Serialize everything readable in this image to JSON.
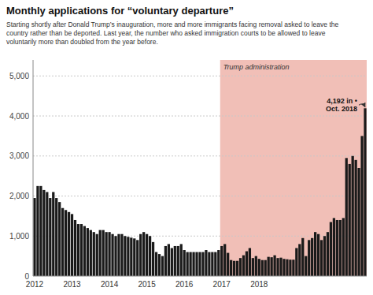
{
  "chart_data": {
    "type": "bar",
    "title": "Monthly applications for “voluntary departure”",
    "subtitle": "Starting shortly after Donald Trump’s inauguration, more and more immigrants facing removal asked to leave the\ncountry rather than be deported. Last year, the number who asked immigration courts to be allowed to leave\nvoluntarily more than doubled from the year before.",
    "categories": [
      "2012",
      null,
      null,
      null,
      null,
      null,
      null,
      null,
      null,
      null,
      null,
      null,
      "2013",
      null,
      null,
      null,
      null,
      null,
      null,
      null,
      null,
      null,
      null,
      null,
      "2014",
      null,
      null,
      null,
      null,
      null,
      null,
      null,
      null,
      null,
      null,
      null,
      "2015",
      null,
      null,
      null,
      null,
      null,
      null,
      null,
      null,
      null,
      null,
      null,
      "2016",
      null,
      null,
      null,
      null,
      null,
      null,
      null,
      null,
      null,
      null,
      null,
      "2017",
      null,
      null,
      null,
      null,
      null,
      null,
      null,
      null,
      null,
      null,
      null,
      "2018",
      null,
      null,
      null,
      null,
      null,
      null,
      null,
      null,
      null,
      null,
      null,
      null,
      null,
      null,
      null,
      null,
      null,
      null,
      null,
      null,
      null,
      null,
      null,
      null,
      null,
      null,
      null,
      null,
      null,
      null,
      null,
      null,
      null,
      null
    ],
    "values": [
      1950,
      2250,
      2250,
      2150,
      2100,
      1950,
      2100,
      1950,
      1850,
      1700,
      1650,
      1600,
      1550,
      1400,
      1300,
      1300,
      1250,
      1200,
      1150,
      1100,
      1050,
      1150,
      1150,
      1100,
      1100,
      1050,
      1000,
      1050,
      1050,
      1000,
      980,
      960,
      940,
      900,
      1050,
      1100,
      1050,
      1000,
      850,
      600,
      550,
      500,
      750,
      800,
      700,
      750,
      750,
      800,
      650,
      600,
      600,
      600,
      600,
      600,
      600,
      650,
      600,
      600,
      600,
      650,
      750,
      800,
      580,
      400,
      380,
      380,
      450,
      520,
      620,
      700,
      450,
      500,
      430,
      400,
      400,
      480,
      470,
      520,
      450,
      460,
      430,
      420,
      410,
      410,
      700,
      800,
      950,
      500,
      900,
      950,
      1100,
      1050,
      900,
      1000,
      1100,
      1350,
      1450,
      1400,
      1400,
      1450,
      2950,
      2800,
      3000,
      2900,
      2700,
      3500,
      4192
    ],
    "color": "#1a1a1a",
    "ylim": [
      0,
      5400
    ],
    "yticks": [
      0,
      {
        "value": 1000,
        "label": "1,000"
      },
      {
        "value": 2000,
        "label": "2,000"
      },
      {
        "value": 3000,
        "label": "3,000"
      },
      {
        "value": 4000,
        "label": "4,000"
      },
      {
        "value": 5000,
        "label": "5,000"
      }
    ],
    "grid": true,
    "spans": [
      {
        "label": "Trump administration",
        "start": "2017",
        "color": "#e07060"
      }
    ],
    "annotations": [
      {
        "text": "4,192 in •\nOct. 2018",
        "index": 106,
        "value": 4192
      }
    ]
  }
}
